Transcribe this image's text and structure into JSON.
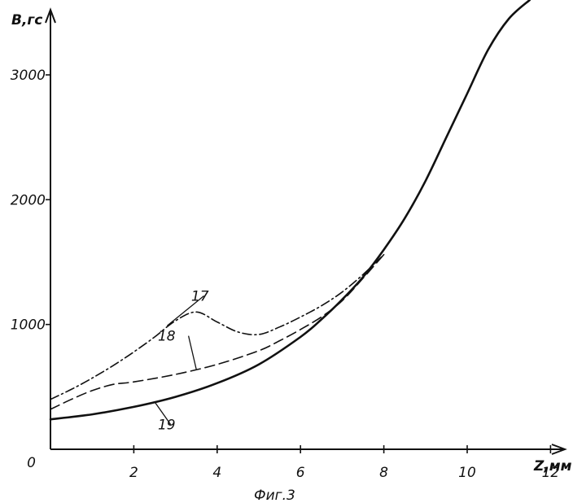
{
  "chart_data": {
    "type": "line",
    "title": "",
    "caption": "Фиг.3",
    "xlabel": "Z,мм",
    "ylabel": "B,гс",
    "xlim": [
      0,
      12.5
    ],
    "ylim": [
      0,
      3600
    ],
    "x_ticks": [
      "2",
      "4",
      "6",
      "8",
      "10",
      "12"
    ],
    "y_ticks": [
      "0",
      "1000",
      "2000",
      "3000"
    ],
    "grid": false,
    "legend": "none",
    "series": [
      {
        "name": "17",
        "style": "dash-dot",
        "x": [
          0,
          0.5,
          1.0,
          1.5,
          2.0,
          2.5,
          3.0,
          3.5,
          4.0,
          4.5,
          5.0,
          5.5,
          6.0,
          6.5,
          7.0,
          7.5,
          8.0
        ],
        "y": [
          400,
          480,
          570,
          670,
          780,
          900,
          1030,
          1100,
          1020,
          940,
          920,
          980,
          1060,
          1150,
          1260,
          1400,
          1560
        ]
      },
      {
        "name": "18",
        "style": "dashed",
        "x": [
          0,
          0.5,
          1.0,
          1.5,
          2.0,
          3.0,
          4.0,
          5.0,
          5.5,
          6.0,
          6.5,
          7.0,
          7.5,
          8.0
        ],
        "y": [
          320,
          400,
          470,
          520,
          540,
          600,
          680,
          790,
          870,
          960,
          1060,
          1190,
          1370,
          1560
        ]
      },
      {
        "name": "19",
        "style": "solid",
        "x": [
          0,
          1,
          2,
          3,
          4,
          5,
          6,
          6.5,
          7,
          7.5,
          8,
          8.5,
          9,
          9.5,
          10,
          10.5,
          11,
          11.5
        ],
        "y": [
          240,
          280,
          340,
          420,
          530,
          680,
          900,
          1040,
          1200,
          1380,
          1600,
          1850,
          2150,
          2500,
          2850,
          3200,
          3450,
          3600
        ]
      }
    ]
  }
}
